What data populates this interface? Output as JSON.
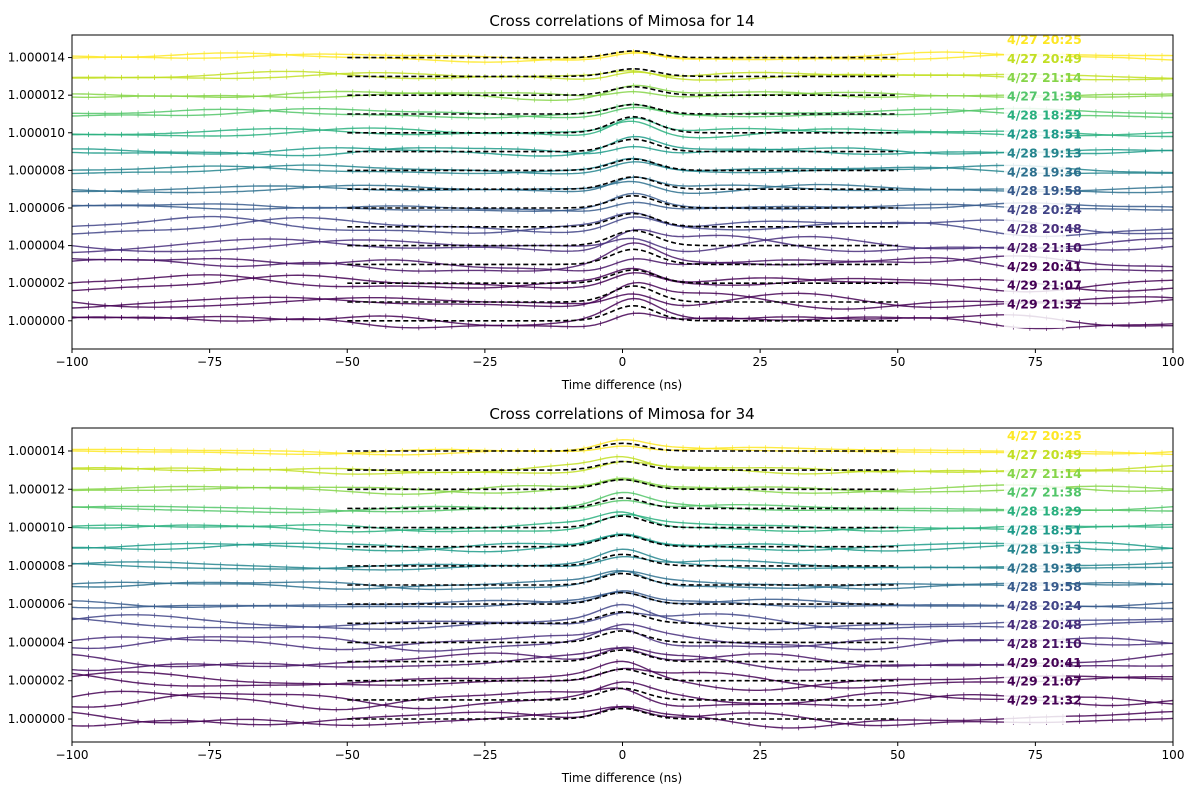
{
  "chart_data": [
    {
      "type": "line",
      "title": "Cross correlations of Mimosa for 14",
      "xlabel": "Time difference (ns)",
      "ylabel": "",
      "xlim": [
        -100,
        100
      ],
      "ylim": [
        0.9999985,
        1.0000152
      ],
      "xticks": [
        -100,
        -75,
        -50,
        -25,
        0,
        25,
        50,
        75,
        100
      ],
      "xtick_labels": [
        "−100",
        "−75",
        "−50",
        "−25",
        "0",
        "25",
        "50",
        "75",
        "100"
      ],
      "yticks": [
        1.0,
        1.000002,
        1.000004,
        1.000006,
        1.000008,
        1.00001,
        1.000012,
        1.000014
      ],
      "ytick_labels": [
        "1.000000",
        "1.000002",
        "1.000004",
        "1.000006",
        "1.000008",
        "1.000010",
        "1.000012",
        "1.000014"
      ],
      "legend_position": "right",
      "series": [
        {
          "name": "4/27 20:25",
          "color": "#fde725",
          "offset": 1.000014,
          "peak_height": 3.5e-07
        },
        {
          "name": "4/27 20:49",
          "color": "#c2df23",
          "offset": 1.000013,
          "peak_height": 4e-07
        },
        {
          "name": "4/27 21:14",
          "color": "#86d549",
          "offset": 1.000012,
          "peak_height": 4.5e-07
        },
        {
          "name": "4/27 21:38",
          "color": "#52c569",
          "offset": 1.000011,
          "peak_height": 5e-07
        },
        {
          "name": "4/28 18:29",
          "color": "#2ab07f",
          "offset": 1.00001,
          "peak_height": 8.5e-07
        },
        {
          "name": "4/28 18:51",
          "color": "#1e9b8a",
          "offset": 1.000009,
          "peak_height": 6.5e-07
        },
        {
          "name": "4/28 19:13",
          "color": "#25858e",
          "offset": 1.000008,
          "peak_height": 6e-07
        },
        {
          "name": "4/28 19:36",
          "color": "#2d708e",
          "offset": 1.000007,
          "peak_height": 6.5e-07
        },
        {
          "name": "4/28 19:58",
          "color": "#375a8c",
          "offset": 1.000006,
          "peak_height": 6.5e-07
        },
        {
          "name": "4/28 20:24",
          "color": "#414487",
          "offset": 1.000005,
          "peak_height": 7e-07
        },
        {
          "name": "4/28 20:48",
          "color": "#472d7b",
          "offset": 1.000004,
          "peak_height": 8e-07
        },
        {
          "name": "4/28 21:10",
          "color": "#471365",
          "offset": 1.000003,
          "peak_height": 8e-07
        },
        {
          "name": "4/29 20:41",
          "color": "#440154",
          "offset": 1.000002,
          "peak_height": 7e-07
        },
        {
          "name": "4/29 21:07",
          "color": "#440154",
          "offset": 1.000001,
          "peak_height": 8.5e-07
        },
        {
          "name": "4/29 21:32",
          "color": "#440154",
          "offset": 1.0,
          "peak_height": 8e-07
        }
      ],
      "fit_curves": {
        "style": "black dashed",
        "x_range": [
          -50,
          50
        ],
        "peak_center": 2,
        "peak_width": 4
      }
    },
    {
      "type": "line",
      "title": "Cross correlations of Mimosa for 34",
      "xlabel": "Time difference (ns)",
      "ylabel": "",
      "xlim": [
        -100,
        100
      ],
      "ylim": [
        0.9999988,
        1.0000152
      ],
      "xticks": [
        -100,
        -75,
        -50,
        -25,
        0,
        25,
        50,
        75,
        100
      ],
      "xtick_labels": [
        "−100",
        "−75",
        "−50",
        "−25",
        "0",
        "25",
        "50",
        "75",
        "100"
      ],
      "yticks": [
        1.0,
        1.000002,
        1.000004,
        1.000006,
        1.000008,
        1.00001,
        1.000012,
        1.000014
      ],
      "ytick_labels": [
        "1.000000",
        "1.000002",
        "1.000004",
        "1.000006",
        "1.000008",
        "1.000010",
        "1.000012",
        "1.000014"
      ],
      "legend_position": "right",
      "series": [
        {
          "name": "4/27 20:25",
          "color": "#fde725",
          "offset": 1.000014,
          "peak_height": 4e-07
        },
        {
          "name": "4/27 20:49",
          "color": "#c2df23",
          "offset": 1.000013,
          "peak_height": 4.5e-07
        },
        {
          "name": "4/27 21:14",
          "color": "#86d549",
          "offset": 1.000012,
          "peak_height": 5e-07
        },
        {
          "name": "4/27 21:38",
          "color": "#52c569",
          "offset": 1.000011,
          "peak_height": 5.5e-07
        },
        {
          "name": "4/28 18:29",
          "color": "#2ab07f",
          "offset": 1.00001,
          "peak_height": 6e-07
        },
        {
          "name": "4/28 18:51",
          "color": "#1e9b8a",
          "offset": 1.000009,
          "peak_height": 6e-07
        },
        {
          "name": "4/28 19:13",
          "color": "#25858e",
          "offset": 1.000008,
          "peak_height": 6e-07
        },
        {
          "name": "4/28 19:36",
          "color": "#2d708e",
          "offset": 1.000007,
          "peak_height": 6e-07
        },
        {
          "name": "4/28 19:58",
          "color": "#375a8c",
          "offset": 1.000006,
          "peak_height": 6e-07
        },
        {
          "name": "4/28 20:24",
          "color": "#414487",
          "offset": 1.000005,
          "peak_height": 6e-07
        },
        {
          "name": "4/28 20:48",
          "color": "#472d7b",
          "offset": 1.000004,
          "peak_height": 6e-07
        },
        {
          "name": "4/28 21:10",
          "color": "#471365",
          "offset": 1.000003,
          "peak_height": 6e-07
        },
        {
          "name": "4/29 20:41",
          "color": "#440154",
          "offset": 1.000002,
          "peak_height": 6e-07
        },
        {
          "name": "4/29 21:07",
          "color": "#440154",
          "offset": 1.000001,
          "peak_height": 6e-07
        },
        {
          "name": "4/29 21:32",
          "color": "#440154",
          "offset": 1.0,
          "peak_height": 5.5e-07
        }
      ],
      "fit_curves": {
        "style": "black dashed",
        "x_range": [
          -50,
          50
        ],
        "peak_center": 0,
        "peak_width": 4
      }
    }
  ]
}
